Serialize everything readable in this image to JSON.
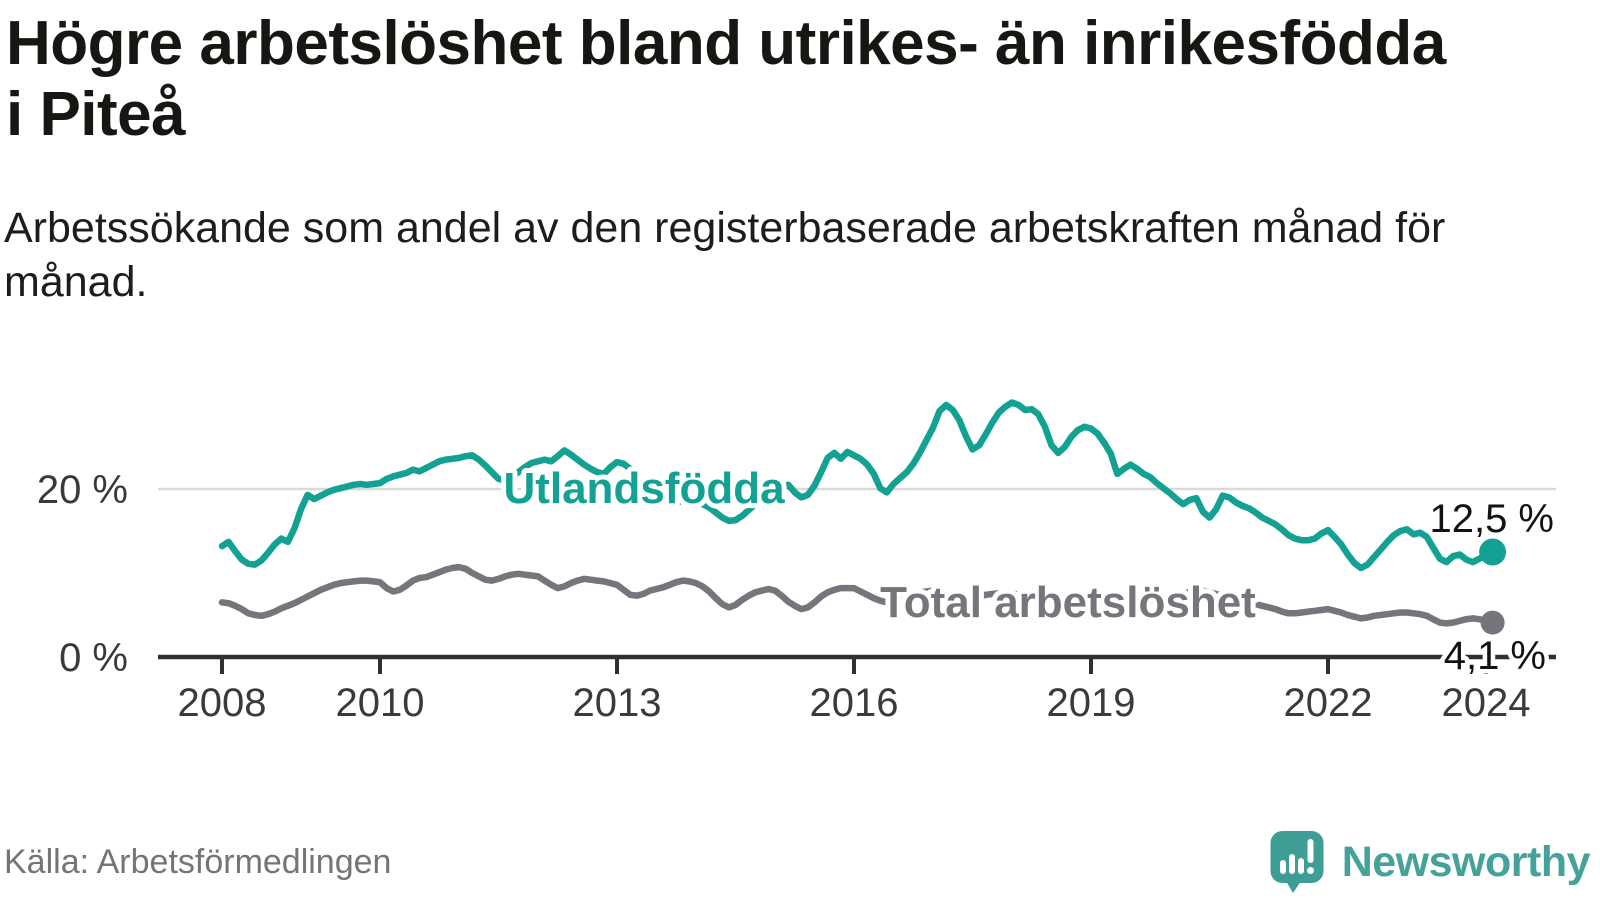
{
  "header": {
    "title": "Högre arbetslöshet bland utrikes- än inrikesfödda i Piteå",
    "subtitle": "Arbetssökande som andel av den registerbaserade arbetskraften månad för månad."
  },
  "footer": {
    "source": "Källa: Arbetsförmedlingen",
    "brand": "Newsworthy"
  },
  "chart_data": {
    "type": "line",
    "unit": "%",
    "x_start_year": 2008,
    "points_per_year": 12,
    "x_end_label": "2024",
    "ylim": [
      0,
      32
    ],
    "grid": "horizontal line at 20 % only",
    "legend_position": "labels drawn on lines",
    "yticks": [
      {
        "value": 0,
        "label": "0 %"
      },
      {
        "value": 20,
        "label": "20 %"
      }
    ],
    "xticks": [
      {
        "year": 2008,
        "label": "2008"
      },
      {
        "year": 2010,
        "label": "2010"
      },
      {
        "year": 2013,
        "label": "2013"
      },
      {
        "year": 2016,
        "label": "2016"
      },
      {
        "year": 2019,
        "label": "2019"
      },
      {
        "year": 2022,
        "label": "2022"
      },
      {
        "year": 2024,
        "label": "2024"
      }
    ],
    "series": [
      {
        "name": "utlandsfodda",
        "label": "Utlandsfödda",
        "color": "#12A192",
        "end_value": 12.5,
        "end_label": "12,5 %",
        "values": [
          13.2,
          13.7,
          12.6,
          11.6,
          11.1,
          11.0,
          11.5,
          12.4,
          13.4,
          14.1,
          13.7,
          15.3,
          17.6,
          19.3,
          18.8,
          19.2,
          19.6,
          19.9,
          20.1,
          20.3,
          20.5,
          20.6,
          20.5,
          20.6,
          20.7,
          21.2,
          21.5,
          21.7,
          21.9,
          22.3,
          22.1,
          22.5,
          22.9,
          23.3,
          23.5,
          23.6,
          23.7,
          23.9,
          24.0,
          23.5,
          22.8,
          22.0,
          21.2,
          21.0,
          21.5,
          22.0,
          22.6,
          23.1,
          23.3,
          23.5,
          23.3,
          23.9,
          24.6,
          24.1,
          23.5,
          22.9,
          22.4,
          22.0,
          21.8,
          22.6,
          23.2,
          23.0,
          22.4,
          21.6,
          20.8,
          20.0,
          19.3,
          18.8,
          18.5,
          18.4,
          18.6,
          18.8,
          18.6,
          18.2,
          17.8,
          17.2,
          16.6,
          16.2,
          16.3,
          16.8,
          17.5,
          18.2,
          18.8,
          19.6,
          20.4,
          20.1,
          20.5,
          19.6,
          19.0,
          19.3,
          20.4,
          22.0,
          23.7,
          24.3,
          23.6,
          24.4,
          24.0,
          23.6,
          22.9,
          21.8,
          20.1,
          19.6,
          20.6,
          21.3,
          22.0,
          23.0,
          24.3,
          25.8,
          27.3,
          29.3,
          30.0,
          29.4,
          28.2,
          26.3,
          24.7,
          25.2,
          26.5,
          27.9,
          29.1,
          29.8,
          30.3,
          30.0,
          29.4,
          29.5,
          28.9,
          27.4,
          25.2,
          24.3,
          25.0,
          26.2,
          27.0,
          27.4,
          27.2,
          26.6,
          25.5,
          24.2,
          21.8,
          22.4,
          22.9,
          22.4,
          21.8,
          21.4,
          20.7,
          20.1,
          19.5,
          18.8,
          18.2,
          18.7,
          18.9,
          17.3,
          16.6,
          17.6,
          19.2,
          19.0,
          18.4,
          18.0,
          17.7,
          17.2,
          16.6,
          16.2,
          15.8,
          15.2,
          14.5,
          14.1,
          13.9,
          13.9,
          14.1,
          14.7,
          15.1,
          14.3,
          13.4,
          12.2,
          11.2,
          10.6,
          11.0,
          11.9,
          12.8,
          13.7,
          14.5,
          15.0,
          15.2,
          14.6,
          14.8,
          14.3,
          13.0,
          11.7,
          11.3,
          12.0,
          12.2,
          11.6,
          11.3,
          11.7,
          12.0,
          12.5
        ]
      },
      {
        "name": "total-arbetsloshet",
        "label": "Total arbetslöshet",
        "color": "#76757C",
        "end_value": 4.1,
        "end_label": "4,1 %",
        "values": [
          6.5,
          6.4,
          6.1,
          5.7,
          5.2,
          5.0,
          4.9,
          5.1,
          5.4,
          5.8,
          6.1,
          6.4,
          6.8,
          7.2,
          7.6,
          8.0,
          8.3,
          8.6,
          8.8,
          8.9,
          9.0,
          9.1,
          9.1,
          9.0,
          8.9,
          8.2,
          7.8,
          8.0,
          8.5,
          9.1,
          9.4,
          9.5,
          9.8,
          10.1,
          10.4,
          10.6,
          10.7,
          10.5,
          10.0,
          9.6,
          9.2,
          9.1,
          9.3,
          9.6,
          9.8,
          9.9,
          9.8,
          9.7,
          9.6,
          9.1,
          8.6,
          8.2,
          8.4,
          8.8,
          9.1,
          9.3,
          9.2,
          9.1,
          9.0,
          8.8,
          8.6,
          8.0,
          7.4,
          7.3,
          7.5,
          7.9,
          8.1,
          8.3,
          8.6,
          8.9,
          9.1,
          9.0,
          8.8,
          8.4,
          7.8,
          7.0,
          6.3,
          5.9,
          6.2,
          6.8,
          7.3,
          7.7,
          7.9,
          8.1,
          7.9,
          7.3,
          6.6,
          6.1,
          5.7,
          5.9,
          6.5,
          7.2,
          7.7,
          8.0,
          8.2,
          8.2,
          8.2,
          7.8,
          7.4,
          7.0,
          6.7,
          6.5,
          6.7,
          7.0,
          7.3,
          7.5,
          7.7,
          7.8,
          7.9,
          7.7,
          7.4,
          7.2,
          7.0,
          6.8,
          7.0,
          7.2,
          7.4,
          7.5,
          7.6,
          7.7,
          7.6,
          7.4,
          7.2,
          6.9,
          6.7,
          6.5,
          6.6,
          6.8,
          6.9,
          7.0,
          7.0,
          7.1,
          7.0,
          6.8,
          6.6,
          6.4,
          6.2,
          6.1,
          6.3,
          6.5,
          6.6,
          6.7,
          6.8,
          6.9,
          7.0,
          7.1,
          7.4,
          7.8,
          8.0,
          7.9,
          7.7,
          7.5,
          7.3,
          7.1,
          6.9,
          6.7,
          6.5,
          6.3,
          6.1,
          5.9,
          5.7,
          5.4,
          5.2,
          5.2,
          5.3,
          5.4,
          5.5,
          5.6,
          5.7,
          5.5,
          5.3,
          5.0,
          4.8,
          4.6,
          4.7,
          4.9,
          5.0,
          5.1,
          5.2,
          5.3,
          5.3,
          5.2,
          5.1,
          4.9,
          4.5,
          4.1,
          4.0,
          4.1,
          4.3,
          4.5,
          4.6,
          4.5,
          4.3,
          4.1
        ]
      }
    ]
  }
}
